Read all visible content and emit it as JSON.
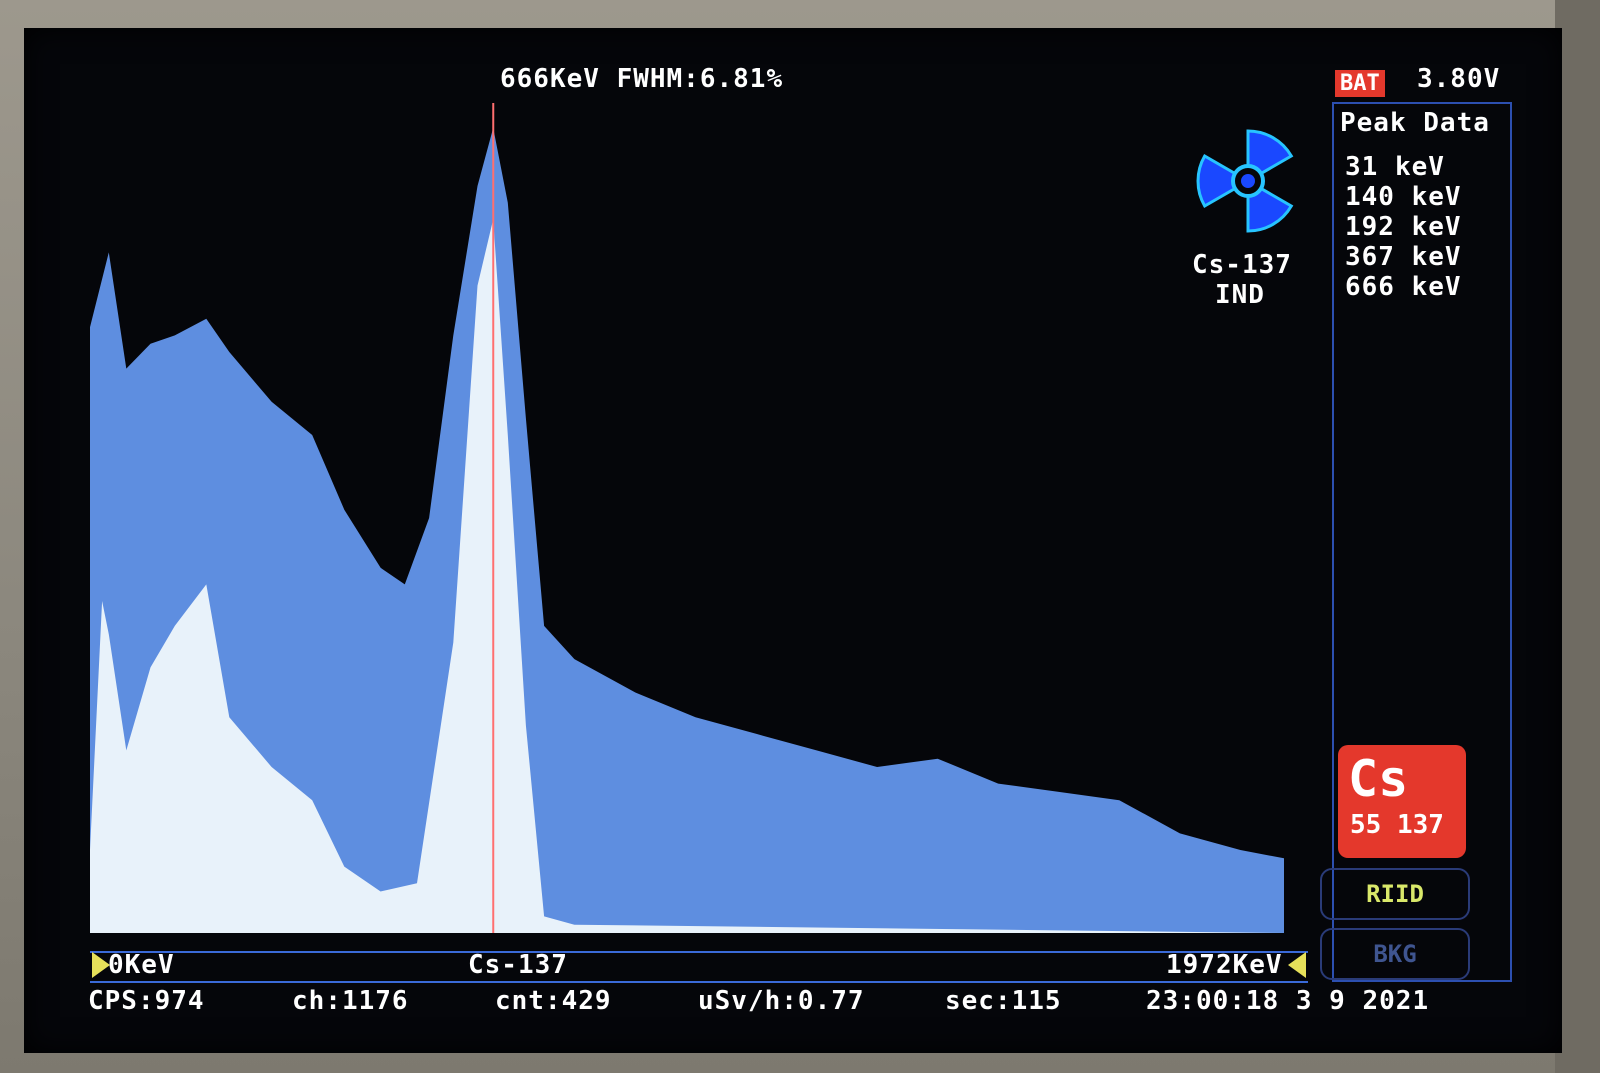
{
  "header": {
    "peak_title": "666KeV FWHM:6.81%",
    "battery_label": "BAT",
    "battery_voltage": "3.80V"
  },
  "peak_panel": {
    "title": "Peak Data",
    "items": [
      "31 keV",
      "140 keV",
      "192 keV",
      "367 keV",
      "666 keV"
    ]
  },
  "isotope": {
    "icon": "radiation-trefoil-icon",
    "name": "Cs-137",
    "classification": "IND"
  },
  "element_badge": {
    "symbol": "Cs",
    "numbers": "55 137",
    "color": "#e4382c"
  },
  "buttons": {
    "riid": "RIID",
    "bkg": "BKG"
  },
  "axis": {
    "start": "0KeV",
    "center": "Cs-137",
    "end": "1972KeV"
  },
  "status": {
    "cps": "CPS:974",
    "channel": "ch:1176",
    "count": "cnt:429",
    "dose": "uSv/h:0.77",
    "seconds": "sec:115",
    "datetime": "23:00:18 3 9 2021"
  },
  "colors": {
    "spectrum_accumulated": "#5e8ee0",
    "spectrum_current": "#e8f2fa",
    "marker_line": "#ff6f6f",
    "screen_background": "#05060a",
    "accent": "#2c4fb0"
  },
  "chart_data": {
    "type": "area",
    "xlim_keV": [
      0,
      1972
    ],
    "cursor_keV": 666,
    "peaks_keV": [
      31,
      140,
      192,
      367,
      666
    ],
    "series": [
      {
        "values": [
          [
            0,
            0.73
          ],
          [
            31,
            0.82
          ],
          [
            60,
            0.68
          ],
          [
            100,
            0.71
          ],
          [
            140,
            0.72
          ],
          [
            192,
            0.74
          ],
          [
            230,
            0.7
          ],
          [
            300,
            0.64
          ],
          [
            367,
            0.6
          ],
          [
            420,
            0.51
          ],
          [
            480,
            0.44
          ],
          [
            520,
            0.42
          ],
          [
            560,
            0.5
          ],
          [
            600,
            0.72
          ],
          [
            640,
            0.9
          ],
          [
            666,
            0.97
          ],
          [
            690,
            0.88
          ],
          [
            720,
            0.62
          ],
          [
            750,
            0.37
          ],
          [
            800,
            0.33
          ],
          [
            900,
            0.29
          ],
          [
            1000,
            0.26
          ],
          [
            1100,
            0.24
          ],
          [
            1200,
            0.22
          ],
          [
            1300,
            0.2
          ],
          [
            1400,
            0.21
          ],
          [
            1500,
            0.18
          ],
          [
            1600,
            0.17
          ],
          [
            1700,
            0.16
          ],
          [
            1800,
            0.12
          ],
          [
            1900,
            0.1
          ],
          [
            1972,
            0.09
          ]
        ]
      },
      {
        "values": [
          [
            0,
            0.1
          ],
          [
            20,
            0.4
          ],
          [
            31,
            0.36
          ],
          [
            60,
            0.22
          ],
          [
            100,
            0.32
          ],
          [
            140,
            0.37
          ],
          [
            192,
            0.42
          ],
          [
            230,
            0.26
          ],
          [
            300,
            0.2
          ],
          [
            367,
            0.16
          ],
          [
            420,
            0.08
          ],
          [
            480,
            0.05
          ],
          [
            540,
            0.06
          ],
          [
            600,
            0.35
          ],
          [
            640,
            0.78
          ],
          [
            666,
            0.86
          ],
          [
            690,
            0.6
          ],
          [
            720,
            0.25
          ],
          [
            750,
            0.02
          ],
          [
            800,
            0.01
          ],
          [
            1972,
            0.0
          ]
        ]
      }
    ]
  }
}
